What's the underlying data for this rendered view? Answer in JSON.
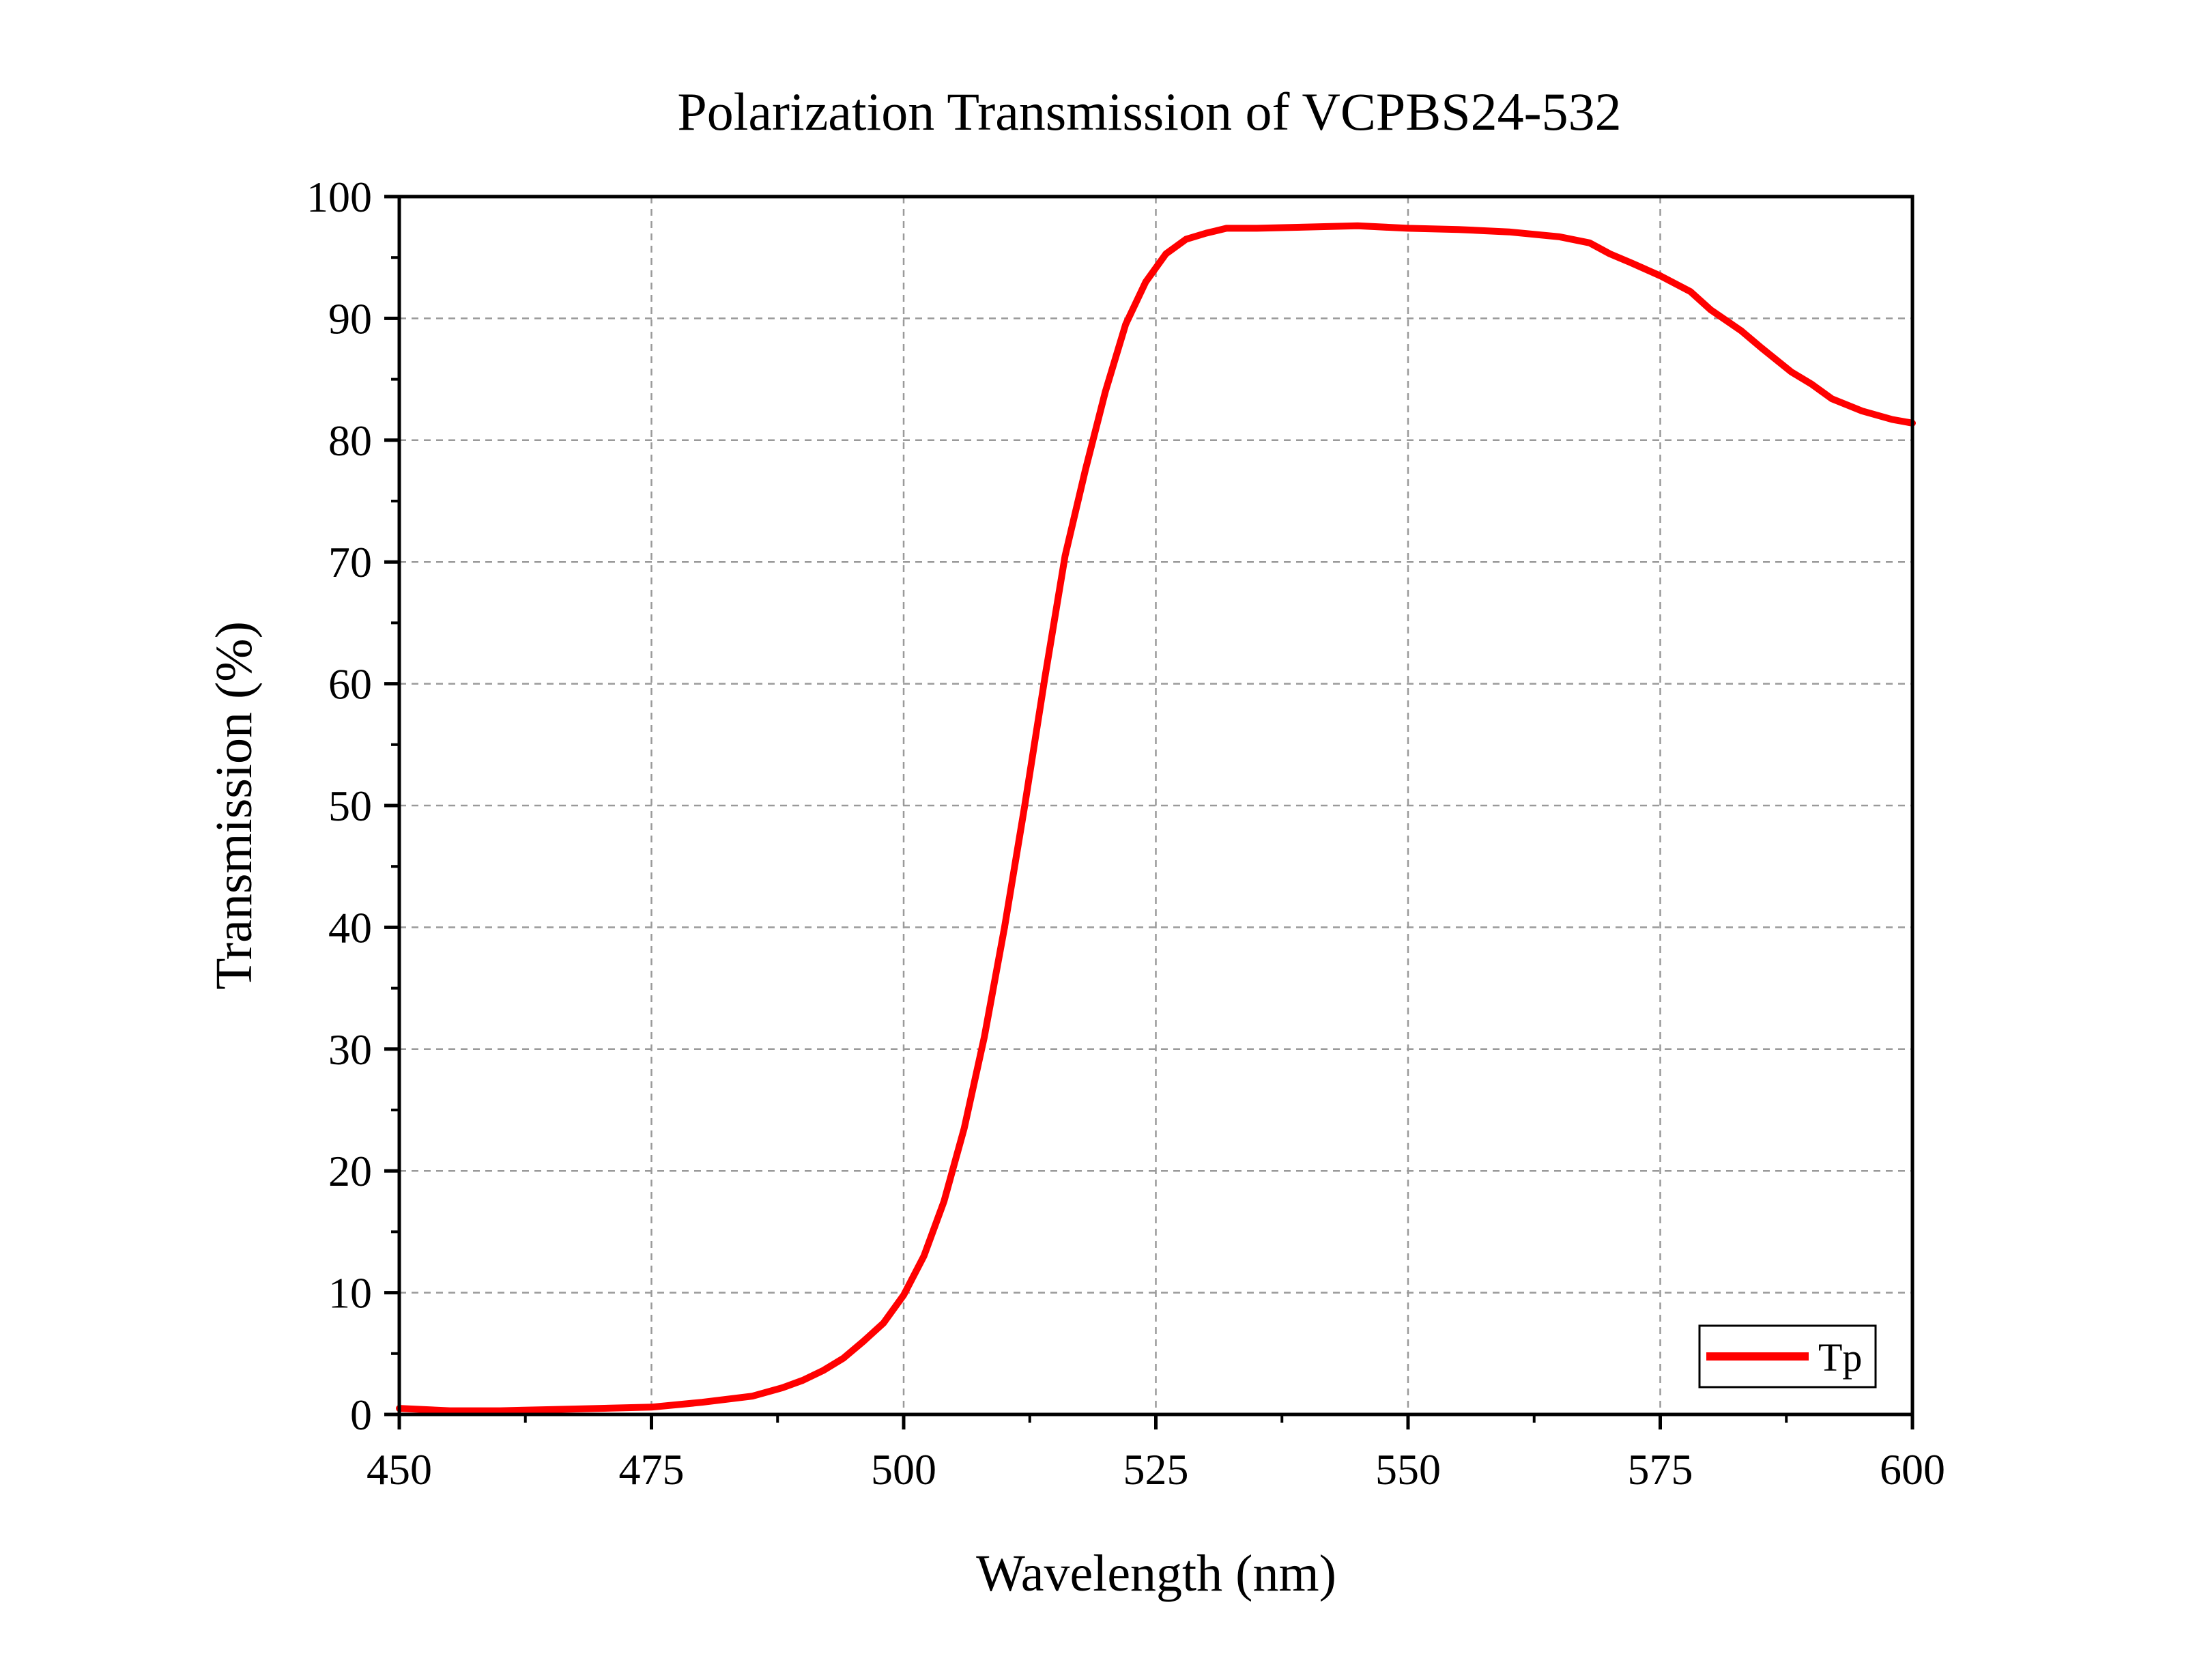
{
  "chart_data": {
    "type": "line",
    "title": "Polarization Transmission of VCPBS24-532",
    "xlabel": "Wavelength (nm)",
    "ylabel": "Transmission (%)",
    "xlim": [
      450,
      600
    ],
    "ylim": [
      0,
      100
    ],
    "xticks": [
      450,
      475,
      500,
      525,
      550,
      575,
      600
    ],
    "yticks": [
      0,
      10,
      20,
      30,
      40,
      50,
      60,
      70,
      80,
      90,
      100
    ],
    "grid": true,
    "legend_position": "bottom-right",
    "colors": {
      "Tp": "#ff0000"
    },
    "series": [
      {
        "name": "Tp",
        "x": [
          450,
          455,
          460,
          465,
          470,
          475,
          480,
          485,
          488,
          490,
          492,
          494,
          496,
          498,
          500,
          502,
          504,
          506,
          508,
          510,
          512,
          514,
          516,
          518,
          520,
          522,
          524,
          526,
          528,
          530,
          532,
          535,
          540,
          545,
          550,
          555,
          560,
          565,
          568,
          570,
          572,
          575,
          578,
          580,
          583,
          585,
          588,
          590,
          592,
          595,
          598,
          600
        ],
        "y": [
          0.5,
          0.3,
          0.3,
          0.4,
          0.5,
          0.6,
          1.0,
          1.5,
          2.2,
          2.8,
          3.6,
          4.6,
          6.0,
          7.5,
          9.8,
          13.0,
          17.5,
          23.5,
          31.0,
          40.0,
          50.0,
          60.5,
          70.5,
          77.5,
          84.0,
          89.5,
          93.0,
          95.3,
          96.5,
          97.0,
          97.4,
          97.4,
          97.5,
          97.6,
          97.4,
          97.3,
          97.1,
          96.7,
          96.2,
          95.3,
          94.6,
          93.5,
          92.2,
          90.7,
          89.0,
          87.6,
          85.6,
          84.6,
          83.4,
          82.4,
          81.7,
          81.4
        ]
      }
    ]
  }
}
